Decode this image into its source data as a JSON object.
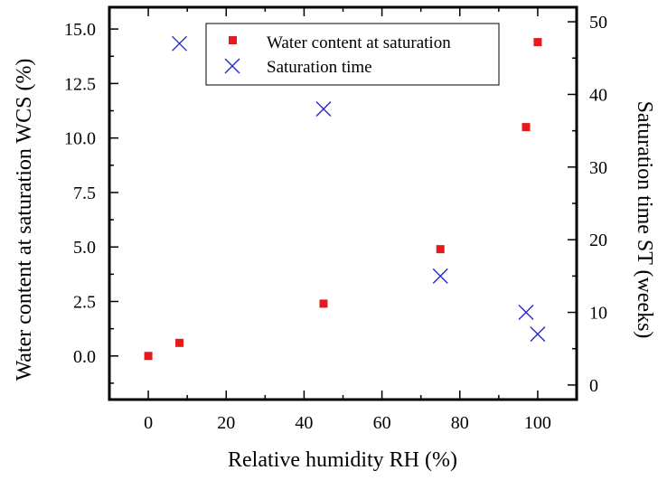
{
  "chart_data": {
    "type": "scatter",
    "xlabel": "Relative humidity RH (%)",
    "ylabel_left": "Water content at saturation WCS (%)",
    "ylabel_right": "Saturation time ST (weeks)",
    "xlim": [
      -10,
      110
    ],
    "ylim_left": [
      -2.0,
      16.0
    ],
    "ylim_right": [
      -2,
      52
    ],
    "x_ticks": [
      0,
      20,
      40,
      60,
      80,
      100
    ],
    "y_left_ticks": [
      0.0,
      2.5,
      5.0,
      7.5,
      10.0,
      12.5,
      15.0
    ],
    "y_right_ticks": [
      0,
      10,
      20,
      30,
      40,
      50
    ],
    "x_tick_labels": [
      "0",
      "20",
      "40",
      "60",
      "80",
      "100"
    ],
    "y_left_tick_labels": [
      "0.0",
      "2.5",
      "5.0",
      "7.5",
      "10.0",
      "12.5",
      "15.0"
    ],
    "y_right_tick_labels": [
      "0",
      "10",
      "20",
      "30",
      "40",
      "50"
    ],
    "grid": false,
    "legend_position": "top-right",
    "series": [
      {
        "name": "Water content at saturation",
        "marker": "square",
        "color": "#e41a1c",
        "axis": "left",
        "points": [
          {
            "x": 0,
            "y": 0.0
          },
          {
            "x": 8,
            "y": 0.6
          },
          {
            "x": 45,
            "y": 2.4
          },
          {
            "x": 75,
            "y": 4.9
          },
          {
            "x": 97,
            "y": 10.5
          },
          {
            "x": 100,
            "y": 14.4
          }
        ]
      },
      {
        "name": "Saturation time",
        "marker": "x",
        "color": "#2828c8",
        "axis": "right",
        "points": [
          {
            "x": 8,
            "y": 47
          },
          {
            "x": 45,
            "y": 38
          },
          {
            "x": 75,
            "y": 15
          },
          {
            "x": 97,
            "y": 10
          },
          {
            "x": 100,
            "y": 7
          }
        ]
      }
    ]
  }
}
